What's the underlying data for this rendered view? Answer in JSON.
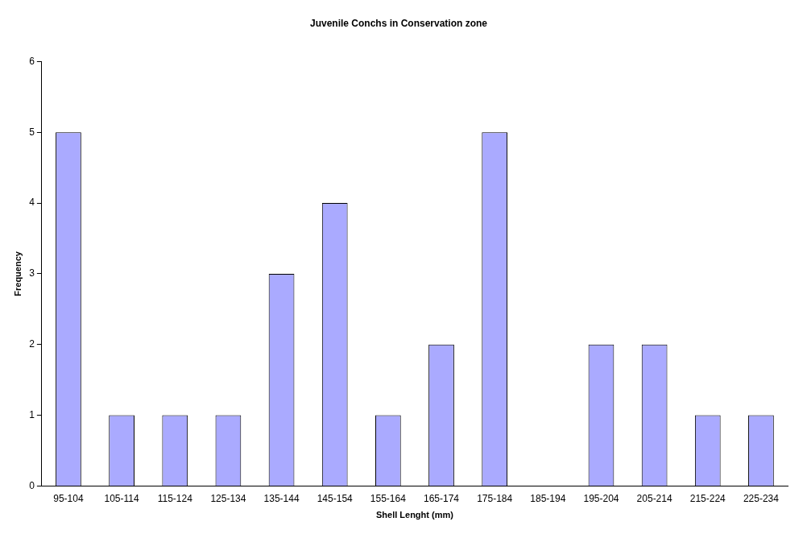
{
  "chart_data": {
    "type": "bar",
    "title": "Juvenile Conchs in Conservation zone",
    "xlabel": "Shell Lenght (mm)",
    "ylabel": "Frequency",
    "categories": [
      "95-104",
      "105-114",
      "115-124",
      "125-134",
      "135-144",
      "145-154",
      "155-164",
      "165-174",
      "175-184",
      "185-194",
      "195-204",
      "205-214",
      "215-224",
      "225-234"
    ],
    "values": [
      5,
      1,
      1,
      1,
      3,
      4,
      1,
      2,
      5,
      0,
      2,
      2,
      1,
      1
    ],
    "color": "#aaaaff",
    "ylim": [
      0,
      6
    ],
    "yticks": [
      0,
      1,
      2,
      3,
      4,
      5,
      6
    ],
    "grid": false,
    "legend": false
  }
}
